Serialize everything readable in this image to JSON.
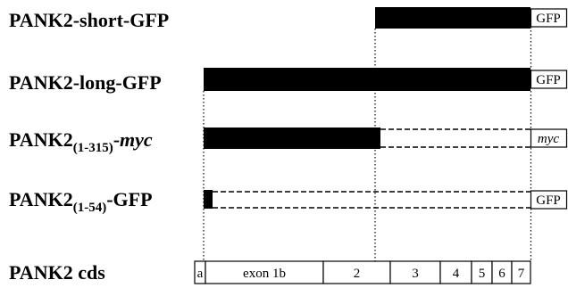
{
  "constructs": [
    {
      "name": "PANK2-short-GFP",
      "tag": "GFP"
    },
    {
      "name": "PANK2-long-GFP",
      "tag": "GFP"
    },
    {
      "name": "PANK2",
      "subscript": "(1-315)",
      "suffix": "-",
      "suffix_italic": "myc",
      "tag": "myc"
    },
    {
      "name": "PANK2",
      "subscript": "(1-54)",
      "suffix": "-GFP",
      "tag": "GFP"
    }
  ],
  "cds": {
    "label": "PANK2 cds",
    "exons": [
      "a",
      "exon 1b",
      "2",
      "3",
      "4",
      "5",
      "6",
      "7"
    ]
  }
}
